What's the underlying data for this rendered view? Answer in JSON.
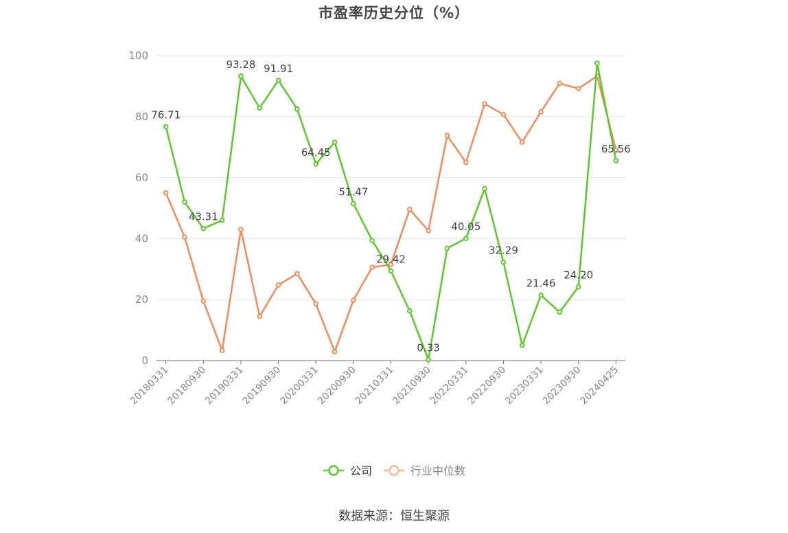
{
  "title": "市盈率历史分位（%）",
  "source": "数据来源：恒生聚源",
  "colors": {
    "company": "#5cc82b",
    "industry": "#f08c5a",
    "industry_legend": "#f5b89c",
    "grid": "#e5e5e5",
    "axis": "#6e7079",
    "tick_text": "#888888",
    "label_text": "#444444"
  },
  "chart_data": {
    "type": "line",
    "title": "市盈率历史分位（%）",
    "ylim": [
      0,
      100
    ],
    "yticks": [
      0,
      20,
      40,
      60,
      80,
      100
    ],
    "grid": true,
    "legend_position": "bottom",
    "x_tick_labels": [
      "20180331",
      "20180930",
      "20190331",
      "20190930",
      "20200331",
      "20200930",
      "20210331",
      "20210930",
      "20220331",
      "20220930",
      "20230331",
      "20230930",
      "20240425"
    ],
    "x": [
      "20180331",
      "20180630",
      "20180930",
      "20181231",
      "20190331",
      "20190630",
      "20190930",
      "20191231",
      "20200331",
      "20200630",
      "20200930",
      "20201231",
      "20210331",
      "20210630",
      "20210930",
      "20211231",
      "20220331",
      "20220630",
      "20220930",
      "20221231",
      "20230331",
      "20230630",
      "20230930",
      "20231231",
      "20240425"
    ],
    "series": [
      {
        "name": "公司",
        "values": [
          76.71,
          52.0,
          43.31,
          46.0,
          93.28,
          82.8,
          91.91,
          82.5,
          64.45,
          71.6,
          51.47,
          39.4,
          29.42,
          16.3,
          0.33,
          36.8,
          40.05,
          56.4,
          32.29,
          5.0,
          21.46,
          15.9,
          24.2,
          97.5,
          65.56
        ],
        "labels": [
          "76.71",
          "",
          "43.31",
          "",
          "93.28",
          "",
          "91.91",
          "",
          "64.45",
          "",
          "51.47",
          "",
          "29.42",
          "",
          "0.33",
          "",
          "40.05",
          "",
          "32.29",
          "",
          "21.46",
          "",
          "24.20",
          "",
          "65.56"
        ]
      },
      {
        "name": "行业中位数",
        "values": [
          55.0,
          40.5,
          19.5,
          3.3,
          43.0,
          14.5,
          24.8,
          28.5,
          18.6,
          2.9,
          19.8,
          30.6,
          31.5,
          49.6,
          42.6,
          73.8,
          65.0,
          84.2,
          80.7,
          71.6,
          81.6,
          90.9,
          89.2,
          93.3,
          69.0
        ]
      }
    ]
  }
}
